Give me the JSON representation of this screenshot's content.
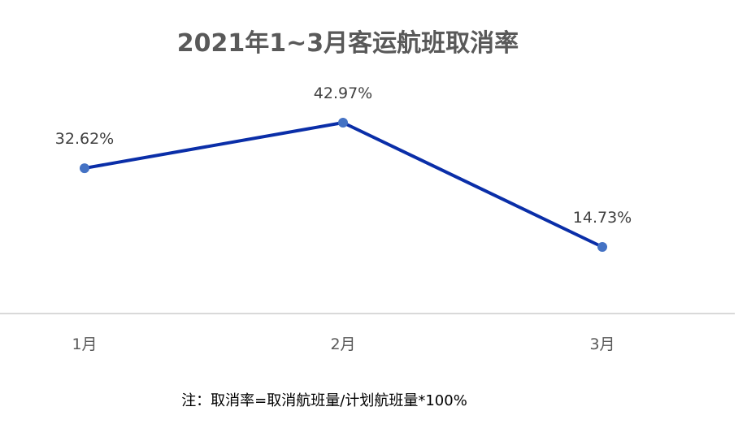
{
  "chart_data": {
    "type": "line",
    "title": "2021年1~3月客运航班取消率",
    "categories": [
      "1月",
      "2月",
      "3月"
    ],
    "series": [
      {
        "values": [
          32.62,
          42.97,
          14.73
        ],
        "labels": [
          "32.62%",
          "42.97%",
          "14.73%"
        ]
      }
    ],
    "xlabel": "",
    "ylabel": "",
    "ylim": [
      0,
      50
    ],
    "grid": false,
    "legend": "none",
    "colors": {
      "line": "#0a2ea8",
      "marker": "#4472c4",
      "axis": "#d9d9d9"
    }
  },
  "footnote": "注：取消率=取消航班量/计划航班量*100%"
}
